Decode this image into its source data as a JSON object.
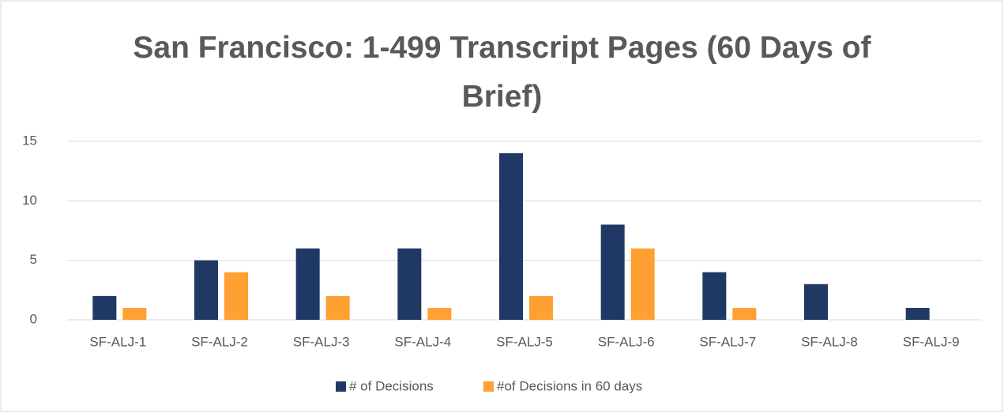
{
  "chart_data": {
    "type": "bar",
    "title": "San Francisco: 1-499 Transcript Pages (60 Days of Brief)",
    "categories": [
      "SF-ALJ-1",
      "SF-ALJ-2",
      "SF-ALJ-3",
      "SF-ALJ-4",
      "SF-ALJ-5",
      "SF-ALJ-6",
      "SF-ALJ-7",
      "SF-ALJ-8",
      "SF-ALJ-9"
    ],
    "series": [
      {
        "name": "# of Decisions",
        "color": "#203864",
        "values": [
          2,
          5,
          6,
          6,
          14,
          8,
          4,
          3,
          1
        ]
      },
      {
        "name": "#of Decisions in 60 days",
        "color": "#ffa033",
        "values": [
          1,
          4,
          2,
          1,
          2,
          6,
          1,
          0,
          0
        ]
      }
    ],
    "ylim": [
      0,
      15
    ],
    "yticks": [
      0,
      5,
      10,
      15
    ],
    "grid": true,
    "legend": "bottom"
  }
}
